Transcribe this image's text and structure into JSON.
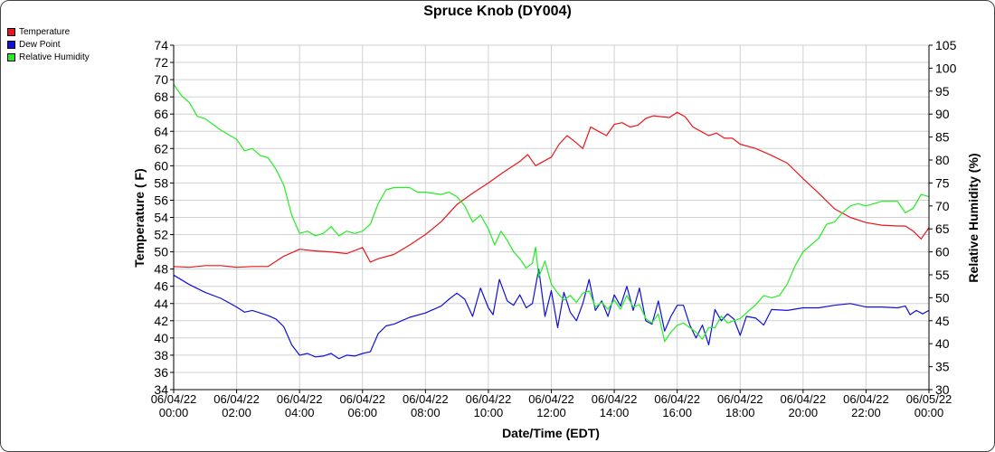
{
  "chart_data": {
    "type": "line",
    "title": "Spruce Knob (DY004)",
    "xlabel": "Date/Time (EDT)",
    "ylabel_left": "Temperature ( F)",
    "ylabel_right": "Relative Humidity (%)",
    "y_left_range": [
      34,
      74
    ],
    "y_right_range": [
      30,
      105
    ],
    "y_left_ticks": [
      34,
      36,
      38,
      40,
      42,
      44,
      46,
      48,
      50,
      52,
      54,
      56,
      58,
      60,
      62,
      64,
      66,
      68,
      70,
      72,
      74
    ],
    "y_right_ticks": [
      30,
      35,
      40,
      45,
      50,
      55,
      60,
      65,
      70,
      75,
      80,
      85,
      90,
      95,
      100,
      105
    ],
    "x_range_hours": [
      0,
      24
    ],
    "x_ticks": [
      {
        "hour": 0,
        "date": "06/04/22",
        "time": "00:00"
      },
      {
        "hour": 2,
        "date": "06/04/22",
        "time": "02:00"
      },
      {
        "hour": 4,
        "date": "06/04/22",
        "time": "04:00"
      },
      {
        "hour": 6,
        "date": "06/04/22",
        "time": "06:00"
      },
      {
        "hour": 8,
        "date": "06/04/22",
        "time": "08:00"
      },
      {
        "hour": 10,
        "date": "06/04/22",
        "time": "10:00"
      },
      {
        "hour": 12,
        "date": "06/04/22",
        "time": "12:00"
      },
      {
        "hour": 14,
        "date": "06/04/22",
        "time": "14:00"
      },
      {
        "hour": 16,
        "date": "06/04/22",
        "time": "16:00"
      },
      {
        "hour": 18,
        "date": "06/04/22",
        "time": "18:00"
      },
      {
        "hour": 20,
        "date": "06/04/22",
        "time": "20:00"
      },
      {
        "hour": 22,
        "date": "06/04/22",
        "time": "22:00"
      },
      {
        "hour": 24,
        "date": "06/05/22",
        "time": "00:00"
      }
    ],
    "grid": true,
    "legend_position": "top-left",
    "series": [
      {
        "name": "Temperature",
        "color": "#e8161b",
        "axis": "left",
        "points": [
          [
            0,
            48.3
          ],
          [
            0.5,
            48.2
          ],
          [
            1,
            48.4
          ],
          [
            1.5,
            48.4
          ],
          [
            2,
            48.2
          ],
          [
            2.5,
            48.3
          ],
          [
            3,
            48.3
          ],
          [
            3.5,
            49.5
          ],
          [
            4,
            50.3
          ],
          [
            4.5,
            50.1
          ],
          [
            5,
            50.0
          ],
          [
            5.5,
            49.8
          ],
          [
            6,
            50.5
          ],
          [
            6.25,
            48.8
          ],
          [
            6.5,
            49.2
          ],
          [
            7,
            49.7
          ],
          [
            7.5,
            50.8
          ],
          [
            8,
            52.0
          ],
          [
            8.5,
            53.5
          ],
          [
            9,
            55.5
          ],
          [
            9.5,
            56.8
          ],
          [
            10,
            58.0
          ],
          [
            10.5,
            59.3
          ],
          [
            11,
            60.5
          ],
          [
            11.25,
            61.3
          ],
          [
            11.5,
            60.0
          ],
          [
            12,
            61.0
          ],
          [
            12.25,
            62.5
          ],
          [
            12.5,
            63.5
          ],
          [
            12.75,
            62.8
          ],
          [
            13,
            62.0
          ],
          [
            13.25,
            64.5
          ],
          [
            13.5,
            64.0
          ],
          [
            13.75,
            63.5
          ],
          [
            14,
            64.8
          ],
          [
            14.25,
            65.0
          ],
          [
            14.5,
            64.5
          ],
          [
            14.75,
            64.7
          ],
          [
            15,
            65.5
          ],
          [
            15.25,
            65.8
          ],
          [
            15.5,
            65.7
          ],
          [
            15.75,
            65.6
          ],
          [
            16,
            66.2
          ],
          [
            16.25,
            65.7
          ],
          [
            16.5,
            64.5
          ],
          [
            16.75,
            64.0
          ],
          [
            17,
            63.5
          ],
          [
            17.25,
            63.8
          ],
          [
            17.5,
            63.2
          ],
          [
            17.75,
            63.2
          ],
          [
            18,
            62.5
          ],
          [
            18.5,
            62.0
          ],
          [
            19,
            61.2
          ],
          [
            19.5,
            60.3
          ],
          [
            20,
            58.5
          ],
          [
            20.5,
            56.8
          ],
          [
            21,
            55.0
          ],
          [
            21.5,
            54.0
          ],
          [
            22,
            53.4
          ],
          [
            22.5,
            53.1
          ],
          [
            23,
            53.0
          ],
          [
            23.25,
            53.0
          ],
          [
            23.5,
            52.4
          ],
          [
            23.75,
            51.5
          ],
          [
            24,
            52.8
          ]
        ]
      },
      {
        "name": "Dew Point",
        "color": "#1010d8",
        "axis": "left",
        "points": [
          [
            0,
            47.3
          ],
          [
            0.5,
            46.2
          ],
          [
            1,
            45.3
          ],
          [
            1.5,
            44.6
          ],
          [
            2,
            43.6
          ],
          [
            2.25,
            43.0
          ],
          [
            2.5,
            43.2
          ],
          [
            3,
            42.6
          ],
          [
            3.25,
            42.2
          ],
          [
            3.5,
            41.3
          ],
          [
            3.75,
            39.2
          ],
          [
            4,
            38.0
          ],
          [
            4.25,
            38.2
          ],
          [
            4.5,
            37.8
          ],
          [
            4.75,
            37.9
          ],
          [
            5,
            38.2
          ],
          [
            5.25,
            37.6
          ],
          [
            5.5,
            38.0
          ],
          [
            5.75,
            37.9
          ],
          [
            6,
            38.2
          ],
          [
            6.25,
            38.4
          ],
          [
            6.5,
            40.5
          ],
          [
            6.75,
            41.4
          ],
          [
            7,
            41.6
          ],
          [
            7.5,
            42.4
          ],
          [
            8,
            42.9
          ],
          [
            8.5,
            43.7
          ],
          [
            8.75,
            44.5
          ],
          [
            9,
            45.2
          ],
          [
            9.25,
            44.5
          ],
          [
            9.5,
            42.5
          ],
          [
            9.75,
            45.8
          ],
          [
            10,
            43.5
          ],
          [
            10.15,
            42.7
          ],
          [
            10.35,
            46.8
          ],
          [
            10.6,
            44.3
          ],
          [
            10.8,
            43.8
          ],
          [
            11,
            45.0
          ],
          [
            11.2,
            43.5
          ],
          [
            11.4,
            44.0
          ],
          [
            11.6,
            48.0
          ],
          [
            11.8,
            42.5
          ],
          [
            12,
            45.5
          ],
          [
            12.2,
            41.2
          ],
          [
            12.4,
            45.3
          ],
          [
            12.6,
            43.0
          ],
          [
            12.8,
            42.0
          ],
          [
            13,
            44.0
          ],
          [
            13.2,
            46.8
          ],
          [
            13.4,
            43.2
          ],
          [
            13.6,
            44.3
          ],
          [
            13.8,
            42.5
          ],
          [
            14,
            45.0
          ],
          [
            14.2,
            43.7
          ],
          [
            14.4,
            46.0
          ],
          [
            14.6,
            43.2
          ],
          [
            14.8,
            45.8
          ],
          [
            15,
            42.0
          ],
          [
            15.2,
            41.6
          ],
          [
            15.4,
            44.3
          ],
          [
            15.6,
            40.8
          ],
          [
            15.8,
            42.5
          ],
          [
            16,
            43.8
          ],
          [
            16.2,
            43.8
          ],
          [
            16.4,
            41.5
          ],
          [
            16.6,
            40.0
          ],
          [
            16.8,
            41.5
          ],
          [
            17,
            39.2
          ],
          [
            17.2,
            43.3
          ],
          [
            17.4,
            42.0
          ],
          [
            17.6,
            42.8
          ],
          [
            17.8,
            42.2
          ],
          [
            18,
            40.3
          ],
          [
            18.2,
            42.5
          ],
          [
            18.5,
            42.3
          ],
          [
            18.75,
            41.5
          ],
          [
            19,
            43.3
          ],
          [
            19.5,
            43.2
          ],
          [
            20,
            43.5
          ],
          [
            20.5,
            43.5
          ],
          [
            21,
            43.8
          ],
          [
            21.5,
            44.0
          ],
          [
            22,
            43.6
          ],
          [
            22.5,
            43.6
          ],
          [
            23,
            43.5
          ],
          [
            23.25,
            43.7
          ],
          [
            23.4,
            42.7
          ],
          [
            23.6,
            43.2
          ],
          [
            23.8,
            42.8
          ],
          [
            24,
            43.2
          ]
        ]
      },
      {
        "name": "Relative Humidity",
        "color": "#22ee22",
        "axis": "right",
        "points": [
          [
            0,
            96.5
          ],
          [
            0.25,
            94
          ],
          [
            0.5,
            92.5
          ],
          [
            0.75,
            89.5
          ],
          [
            1,
            89.0
          ],
          [
            1.5,
            86.5
          ],
          [
            2,
            84.5
          ],
          [
            2.25,
            82
          ],
          [
            2.5,
            82.5
          ],
          [
            2.75,
            81
          ],
          [
            3,
            80.5
          ],
          [
            3.25,
            78
          ],
          [
            3.5,
            74.5
          ],
          [
            3.75,
            68
          ],
          [
            4,
            64
          ],
          [
            4.25,
            64.5
          ],
          [
            4.5,
            63.5
          ],
          [
            4.75,
            64.0
          ],
          [
            5,
            65.5
          ],
          [
            5.25,
            63.5
          ],
          [
            5.5,
            64.5
          ],
          [
            5.75,
            64.0
          ],
          [
            6,
            64.5
          ],
          [
            6.25,
            66.0
          ],
          [
            6.5,
            70.5
          ],
          [
            6.75,
            73.5
          ],
          [
            7,
            74.0
          ],
          [
            7.5,
            74.0
          ],
          [
            7.75,
            73.0
          ],
          [
            8,
            73.0
          ],
          [
            8.5,
            72.5
          ],
          [
            8.75,
            73.0
          ],
          [
            9,
            72.0
          ],
          [
            9.25,
            70.0
          ],
          [
            9.5,
            66.5
          ],
          [
            9.75,
            68.0
          ],
          [
            10,
            65.0
          ],
          [
            10.2,
            61.5
          ],
          [
            10.4,
            64.5
          ],
          [
            10.6,
            62.5
          ],
          [
            10.8,
            60.0
          ],
          [
            11,
            58.5
          ],
          [
            11.2,
            56.5
          ],
          [
            11.4,
            57.5
          ],
          [
            11.5,
            61.0
          ],
          [
            11.6,
            54.5
          ],
          [
            11.8,
            58.0
          ],
          [
            12,
            53.0
          ],
          [
            12.2,
            51.0
          ],
          [
            12.4,
            49.5
          ],
          [
            12.6,
            50.5
          ],
          [
            12.8,
            49.0
          ],
          [
            13,
            51.0
          ],
          [
            13.2,
            51.5
          ],
          [
            13.4,
            48.0
          ],
          [
            13.6,
            49.0
          ],
          [
            13.8,
            47.5
          ],
          [
            14,
            49.5
          ],
          [
            14.2,
            47.5
          ],
          [
            14.4,
            50.5
          ],
          [
            14.6,
            48.0
          ],
          [
            14.8,
            48.5
          ],
          [
            15,
            45.5
          ],
          [
            15.2,
            44.5
          ],
          [
            15.4,
            46.5
          ],
          [
            15.6,
            40.5
          ],
          [
            15.8,
            42.5
          ],
          [
            16,
            44.0
          ],
          [
            16.2,
            44.5
          ],
          [
            16.4,
            43.5
          ],
          [
            16.6,
            42.5
          ],
          [
            16.8,
            41.0
          ],
          [
            17,
            43.5
          ],
          [
            17.2,
            43.5
          ],
          [
            17.4,
            46.0
          ],
          [
            17.6,
            44.5
          ],
          [
            17.8,
            45.0
          ],
          [
            18,
            45.5
          ],
          [
            18.25,
            47.0
          ],
          [
            18.5,
            48.5
          ],
          [
            18.75,
            50.5
          ],
          [
            19,
            50.0
          ],
          [
            19.25,
            50.5
          ],
          [
            19.5,
            53.0
          ],
          [
            19.75,
            57.0
          ],
          [
            20,
            60.0
          ],
          [
            20.25,
            61.5
          ],
          [
            20.5,
            63.0
          ],
          [
            20.75,
            66.0
          ],
          [
            21,
            66.5
          ],
          [
            21.25,
            68.5
          ],
          [
            21.5,
            70.0
          ],
          [
            21.75,
            70.5
          ],
          [
            22,
            70.0
          ],
          [
            22.25,
            70.5
          ],
          [
            22.5,
            71.0
          ],
          [
            22.75,
            71.0
          ],
          [
            23,
            71.0
          ],
          [
            23.25,
            68.5
          ],
          [
            23.5,
            69.5
          ],
          [
            23.75,
            72.5
          ],
          [
            24,
            72.0
          ]
        ]
      }
    ]
  }
}
